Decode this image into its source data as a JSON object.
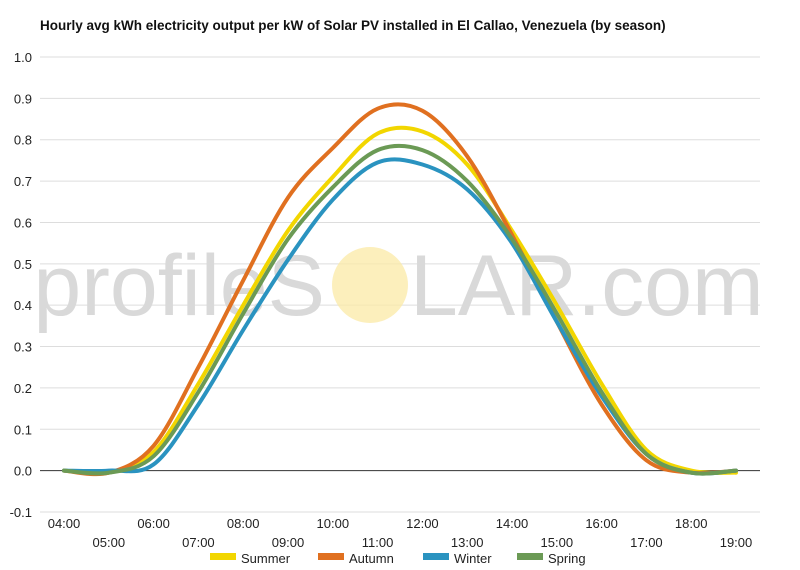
{
  "title": "Hourly avg kWh electricity output per kW of Solar PV installed in El Callao, Venezuela (by season)",
  "watermark": {
    "left": "profileS",
    "right": "LAR.com"
  },
  "chart_data": {
    "type": "line",
    "title": "Hourly avg kWh electricity output per kW of Solar PV installed in El Callao, Venezuela (by season)",
    "xlabel": "",
    "ylabel": "",
    "ylim": [
      -0.1,
      1.0
    ],
    "yticks": [
      "-0.1",
      "0.0",
      "0.1",
      "0.2",
      "0.3",
      "0.4",
      "0.5",
      "0.6",
      "0.7",
      "0.8",
      "0.9",
      "1.0"
    ],
    "x": [
      "04:00",
      "05:00",
      "06:00",
      "07:00",
      "08:00",
      "09:00",
      "10:00",
      "11:00",
      "12:00",
      "13:00",
      "14:00",
      "15:00",
      "16:00",
      "17:00",
      "18:00",
      "19:00"
    ],
    "grid": true,
    "legend": "bottom",
    "series": [
      {
        "name": "Summer",
        "color": "#f2d600",
        "values": [
          0.0,
          -0.005,
          0.045,
          0.21,
          0.4,
          0.58,
          0.71,
          0.815,
          0.82,
          0.74,
          0.58,
          0.4,
          0.21,
          0.05,
          0.0,
          -0.005
        ]
      },
      {
        "name": "Autumn",
        "color": "#e07020",
        "values": [
          0.0,
          -0.005,
          0.06,
          0.25,
          0.46,
          0.66,
          0.78,
          0.875,
          0.87,
          0.76,
          0.57,
          0.36,
          0.16,
          0.025,
          -0.005,
          0.0
        ]
      },
      {
        "name": "Winter",
        "color": "#2a93c0",
        "values": [
          0.0,
          0.0,
          0.015,
          0.16,
          0.34,
          0.51,
          0.655,
          0.745,
          0.74,
          0.68,
          0.55,
          0.36,
          0.18,
          0.04,
          -0.005,
          0.0
        ]
      },
      {
        "name": "Spring",
        "color": "#6b9a55",
        "values": [
          0.0,
          -0.005,
          0.035,
          0.19,
          0.38,
          0.56,
          0.685,
          0.775,
          0.775,
          0.7,
          0.56,
          0.38,
          0.19,
          0.04,
          -0.005,
          0.0
        ]
      }
    ]
  }
}
